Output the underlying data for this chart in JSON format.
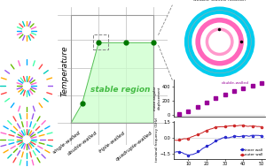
{
  "main_bg": "#ffffff",
  "stable_region_color": "#ccffcc",
  "stable_region_edge": "#22aa22",
  "stable_region_text": "stable region",
  "stable_region_text_color": "#44bb44",
  "x_labels": [
    "single-walled",
    "double-walled",
    "triple-walled",
    "quadruple-walled"
  ],
  "y_label": "Temperature",
  "green_dot_color": "#007700",
  "right_panel_title": "double-walled rotation",
  "upper_plot_color": "#990099",
  "lower_plot_blue": "#2222cc",
  "lower_plot_red": "#cc2222",
  "temperature_x": [
    5,
    10,
    15,
    20,
    25,
    30,
    35,
    40,
    45,
    50
  ],
  "upper_y": [
    5,
    50,
    110,
    175,
    230,
    280,
    330,
    375,
    410,
    450
  ],
  "lower_blue_y_noisy": [
    -1.4,
    -1.7,
    -1.3,
    -0.8,
    -0.3,
    0.05,
    0.15,
    0.2,
    0.2,
    0.2
  ],
  "lower_red_y_noisy": [
    -0.2,
    -0.1,
    0.3,
    0.7,
    1.0,
    1.1,
    1.2,
    1.15,
    1.1,
    1.05
  ],
  "spoke_colors": [
    "#00aaff",
    "#ff66cc",
    "#66bb00",
    "#9955ee",
    "#ffaa00",
    "#00ccbb",
    "#ff4444",
    "#44ffaa"
  ],
  "ring_outer_color": "#00ccee",
  "ring_mid_color": "#ff66bb",
  "ring_inner_color": "#ff99cc"
}
